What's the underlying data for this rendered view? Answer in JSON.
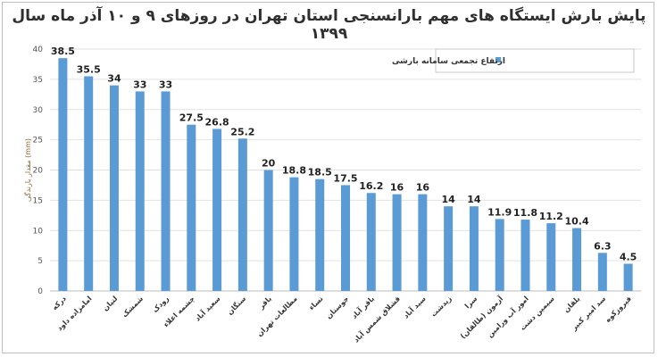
{
  "chart_data": {
    "type": "bar",
    "title": "پایش بارش ایستگاه های مهم بارانسنجی استان تهران  در روزهای ۹ و ۱۰ آذر ماه  سال ۱۳۹۹",
    "ylabel": "مقدار بارندگی (mm)",
    "xlabel": "",
    "ylim": [
      0,
      40
    ],
    "yticks": [
      0,
      5,
      10,
      15,
      20,
      25,
      30,
      35,
      40
    ],
    "grid": true,
    "legend_position": "top-right",
    "categories": [
      "درکه",
      "امامزاده داود",
      "لتیان",
      "شمشک",
      "رودک",
      "چشمه اعلاء",
      "سعید آباد",
      "سنگان",
      "باقر",
      "مطالعات تهران",
      "نساء",
      "جوستان",
      "باقر آباد",
      "قشلاق شمس آباد",
      "سید آباد",
      "زیدشت",
      "سرا",
      "آزمون (طالقان)",
      "امور آب ورامین",
      "سیمین دشت",
      "یلقان",
      "سد امیر کبیر",
      "فیروزکوه"
    ],
    "series": [
      {
        "name": "ارتفاع تجمعی سامانه بارشی",
        "color": "#5b9bd5",
        "values": [
          38.5,
          35.5,
          34,
          33,
          33,
          27.5,
          26.8,
          25.2,
          20,
          18.8,
          18.5,
          17.5,
          16.2,
          16,
          16,
          14,
          14,
          11.9,
          11.8,
          11.2,
          10.4,
          6.3,
          4.5
        ]
      }
    ]
  }
}
